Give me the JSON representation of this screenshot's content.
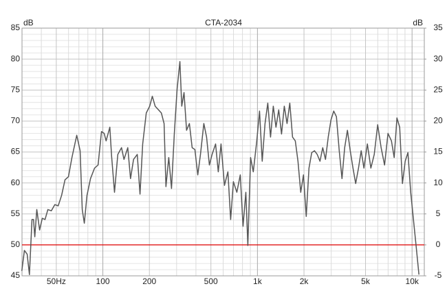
{
  "chart_data": {
    "type": "line",
    "title": "CTA-2034",
    "ylabel": "dB",
    "y2label": "dB",
    "xscale": "log",
    "grid": true,
    "color": "#555555",
    "x": [
      29.9,
      31.1,
      32.4,
      33.5,
      34.8,
      35.6,
      36.3,
      37.4,
      39.0,
      40.6,
      42.3,
      44.1,
      46.4,
      48.9,
      51.4,
      54.1,
      56.9,
      59.9,
      63.1,
      67.8,
      71.3,
      73.6,
      75.9,
      79.0,
      83.2,
      88.4,
      93.1,
      98.0,
      102,
      105,
      111,
      114,
      119,
      125,
      132,
      137,
      145,
      151,
      158,
      167,
      174,
      181,
      191,
      201,
      209,
      218,
      229,
      239,
      249,
      256,
      267,
      278,
      290,
      302,
      315,
      324,
      335,
      348,
      363,
      378,
      394,
      411,
      428,
      450,
      469,
      489,
      509,
      536,
      558,
      581,
      612,
      644,
      671,
      699,
      736,
      774,
      807,
      841,
      867,
      903,
      940,
      990,
      1031,
      1074,
      1119,
      1166,
      1215,
      1266,
      1318,
      1373,
      1431,
      1491,
      1553,
      1618,
      1686,
      1756,
      1829,
      1905,
      1985,
      2068,
      2154,
      2244,
      2338,
      2436,
      2537,
      2643,
      2754,
      2869,
      2989,
      3113,
      3243,
      3379,
      3520,
      3667,
      3820,
      3981,
      4147,
      4320,
      4501,
      4689,
      4885,
      5140,
      5412,
      5696,
      5995,
      6310,
      6641,
      6990,
      7356,
      7662,
      7983,
      8318,
      8666,
      9029,
      9406,
      9799,
      10210,
      10635,
      11080
    ],
    "values": [
      45.8,
      49.1,
      48.5,
      45.2,
      54.1,
      54.1,
      51.3,
      55.7,
      52.4,
      54.3,
      54.1,
      55.7,
      55.5,
      56.5,
      56.3,
      58.0,
      60.5,
      61.0,
      64.1,
      67.7,
      65.2,
      55.7,
      53.5,
      58.0,
      60.7,
      62.4,
      62.9,
      68.3,
      68.0,
      66.8,
      69.0,
      64.3,
      58.5,
      64.6,
      65.7,
      63.8,
      65.7,
      60.7,
      63.8,
      64.6,
      58.2,
      66.3,
      71.3,
      72.4,
      74.0,
      72.4,
      71.8,
      71.3,
      69.6,
      59.4,
      64.1,
      59.1,
      68.0,
      75.1,
      79.6,
      72.4,
      74.6,
      68.5,
      69.6,
      65.7,
      65.4,
      61.3,
      64.6,
      69.6,
      67.4,
      62.9,
      64.6,
      66.3,
      61.8,
      66.3,
      59.6,
      61.8,
      54.1,
      60.2,
      58.5,
      61.3,
      53.0,
      58.5,
      49.9,
      64.1,
      61.8,
      66.8,
      71.6,
      63.5,
      69.6,
      72.9,
      67.4,
      72.4,
      69.0,
      71.8,
      67.9,
      72.4,
      69.6,
      72.9,
      67.4,
      66.8,
      63.5,
      58.5,
      61.3,
      54.6,
      62.4,
      64.9,
      65.2,
      64.6,
      63.5,
      65.7,
      63.8,
      67.4,
      70.2,
      71.6,
      70.7,
      65.2,
      60.7,
      65.7,
      68.5,
      65.2,
      62.4,
      59.9,
      62.4,
      65.2,
      62.4,
      66.3,
      62.4,
      64.6,
      69.4,
      65.7,
      62.9,
      68.0,
      66.8,
      64.1,
      70.5,
      69.0,
      59.9,
      63.5,
      64.9,
      58.5,
      54.1,
      49.7,
      45.2
    ],
    "xlim": [
      30,
      12000
    ],
    "xticks": [
      {
        "value": 50,
        "label": "50Hz"
      },
      100,
      200,
      500,
      {
        "value": 1000,
        "label": "1k"
      },
      {
        "value": 2000,
        "label": "2k"
      },
      {
        "value": 5000,
        "label": "5k"
      },
      {
        "value": 10000,
        "label": "10k"
      }
    ],
    "xminor": [
      30,
      40,
      60,
      70,
      80,
      90,
      300,
      400,
      600,
      700,
      800,
      900,
      3000,
      4000,
      6000,
      7000,
      8000,
      9000
    ],
    "ylim": [
      45,
      85
    ],
    "yticks": [
      45,
      50,
      55,
      60,
      65,
      70,
      75,
      80,
      85
    ],
    "yminor": [
      46,
      47,
      48,
      49,
      51,
      52,
      53,
      54,
      56,
      57,
      58,
      59,
      61,
      62,
      63,
      64,
      66,
      67,
      68,
      69,
      71,
      72,
      73,
      74,
      76,
      77,
      78,
      79,
      81,
      82,
      83,
      84
    ],
    "y2lim": [
      -5,
      35
    ],
    "y2ticks": [
      -5,
      0,
      5,
      10,
      15,
      20,
      25,
      30,
      35
    ],
    "reference_line": {
      "value": 50,
      "color": "#e00000"
    }
  }
}
